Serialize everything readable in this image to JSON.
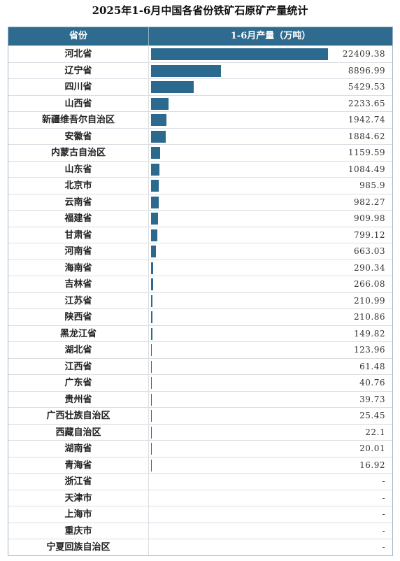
{
  "page": {
    "title": "2025年1-6月中国各省份铁矿石原矿产量统计"
  },
  "colors": {
    "header_bg": "#2e6b8f",
    "bar": "#2b6a8e"
  },
  "chart_data": {
    "type": "table",
    "title": "2025年1-6月中国各省份铁矿石原矿产量统计",
    "columns": [
      "省份",
      "1-6月产量（万吨）"
    ],
    "bar_max": 22409.38,
    "rows": [
      {
        "province": "河北省",
        "value": 22409.38,
        "display": "22409.38"
      },
      {
        "province": "辽宁省",
        "value": 8896.99,
        "display": "8896.99"
      },
      {
        "province": "四川省",
        "value": 5429.53,
        "display": "5429.53"
      },
      {
        "province": "山西省",
        "value": 2233.65,
        "display": "2233.65"
      },
      {
        "province": "新疆维吾尔自治区",
        "value": 1942.74,
        "display": "1942.74"
      },
      {
        "province": "安徽省",
        "value": 1884.62,
        "display": "1884.62"
      },
      {
        "province": "内蒙古自治区",
        "value": 1159.59,
        "display": "1159.59"
      },
      {
        "province": "山东省",
        "value": 1084.49,
        "display": "1084.49"
      },
      {
        "province": "北京市",
        "value": 985.9,
        "display": "985.9"
      },
      {
        "province": "云南省",
        "value": 982.27,
        "display": "982.27"
      },
      {
        "province": "福建省",
        "value": 909.98,
        "display": "909.98"
      },
      {
        "province": "甘肃省",
        "value": 799.12,
        "display": "799.12"
      },
      {
        "province": "河南省",
        "value": 663.03,
        "display": "663.03"
      },
      {
        "province": "海南省",
        "value": 290.34,
        "display": "290.34"
      },
      {
        "province": "吉林省",
        "value": 266.08,
        "display": "266.08"
      },
      {
        "province": "江苏省",
        "value": 210.99,
        "display": "210.99"
      },
      {
        "province": "陕西省",
        "value": 210.86,
        "display": "210.86"
      },
      {
        "province": "黑龙江省",
        "value": 149.82,
        "display": "149.82"
      },
      {
        "province": "湖北省",
        "value": 123.96,
        "display": "123.96"
      },
      {
        "province": "江西省",
        "value": 61.48,
        "display": "61.48"
      },
      {
        "province": "广东省",
        "value": 40.76,
        "display": "40.76"
      },
      {
        "province": "贵州省",
        "value": 39.73,
        "display": "39.73"
      },
      {
        "province": "广西壮族自治区",
        "value": 25.45,
        "display": "25.45"
      },
      {
        "province": "西藏自治区",
        "value": 22.1,
        "display": "22.1"
      },
      {
        "province": "湖南省",
        "value": 20.01,
        "display": "20.01"
      },
      {
        "province": "青海省",
        "value": 16.92,
        "display": "16.92"
      },
      {
        "province": "浙江省",
        "value": null,
        "display": "-"
      },
      {
        "province": "天津市",
        "value": null,
        "display": "-"
      },
      {
        "province": "上海市",
        "value": null,
        "display": "-"
      },
      {
        "province": "重庆市",
        "value": null,
        "display": "-"
      },
      {
        "province": "宁夏回族自治区",
        "value": null,
        "display": "-"
      }
    ]
  }
}
